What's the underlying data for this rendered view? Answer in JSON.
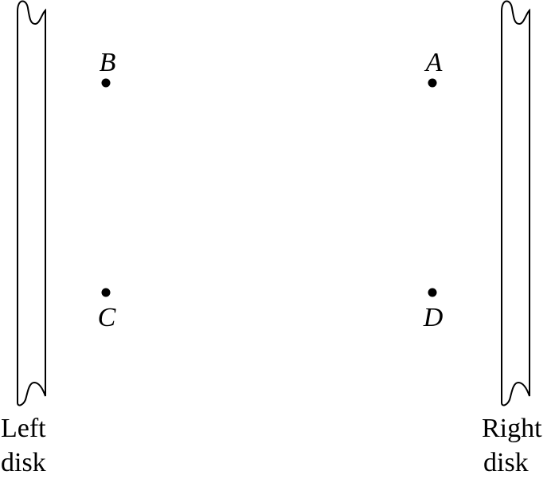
{
  "disks": {
    "left": {
      "label_line1": "Left",
      "label_line2": "disk"
    },
    "right": {
      "label_line1": "Right",
      "label_line2": "disk"
    }
  },
  "points": {
    "A": "A",
    "B": "B",
    "C": "C",
    "D": "D"
  },
  "colors": {
    "ink": "#000000",
    "background": "#ffffff"
  }
}
